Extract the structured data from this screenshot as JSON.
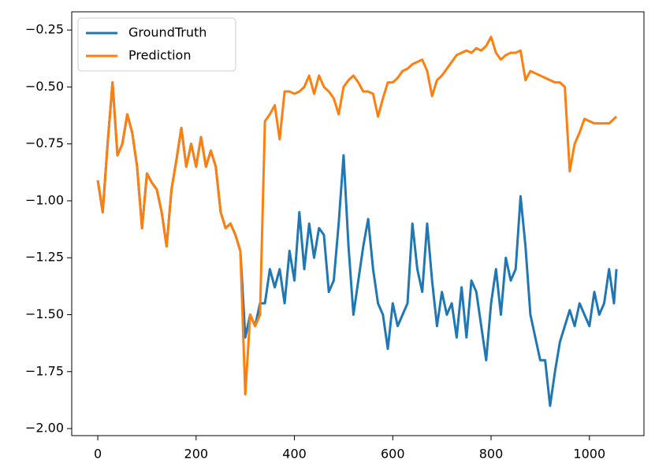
{
  "chart_data": {
    "type": "line",
    "x": [
      0,
      10,
      20,
      30,
      40,
      50,
      60,
      70,
      80,
      90,
      100,
      110,
      120,
      130,
      140,
      150,
      160,
      170,
      180,
      190,
      200,
      210,
      220,
      230,
      240,
      250,
      260,
      270,
      280,
      290,
      300,
      310,
      320,
      330,
      340,
      350,
      360,
      370,
      380,
      390,
      400,
      410,
      420,
      430,
      440,
      450,
      460,
      470,
      480,
      490,
      500,
      510,
      520,
      530,
      540,
      550,
      560,
      570,
      580,
      590,
      600,
      610,
      620,
      630,
      640,
      650,
      660,
      670,
      680,
      690,
      700,
      710,
      720,
      730,
      740,
      750,
      760,
      770,
      780,
      790,
      800,
      810,
      820,
      830,
      840,
      850,
      860,
      870,
      880,
      890,
      900,
      910,
      920,
      930,
      940,
      950,
      960,
      970,
      980,
      990,
      1000,
      1010,
      1020,
      1030,
      1040,
      1050,
      1055
    ],
    "series": [
      {
        "name": "GroundTruth",
        "color": "#1f77b4",
        "values": [
          -0.91,
          -1.05,
          -0.75,
          -0.48,
          -0.8,
          -0.75,
          -0.62,
          -0.7,
          -0.85,
          -1.12,
          -0.88,
          -0.92,
          -0.95,
          -1.05,
          -1.2,
          -0.95,
          -0.82,
          -0.68,
          -0.85,
          -0.75,
          -0.85,
          -0.72,
          -0.85,
          -0.78,
          -0.85,
          -1.05,
          -1.12,
          -1.1,
          -1.15,
          -1.22,
          -1.6,
          -1.5,
          -1.55,
          -1.45,
          -1.45,
          -1.3,
          -1.38,
          -1.3,
          -1.45,
          -1.22,
          -1.35,
          -1.05,
          -1.3,
          -1.1,
          -1.25,
          -1.12,
          -1.15,
          -1.4,
          -1.35,
          -1.1,
          -0.8,
          -1.2,
          -1.5,
          -1.35,
          -1.2,
          -1.08,
          -1.3,
          -1.45,
          -1.5,
          -1.65,
          -1.45,
          -1.55,
          -1.5,
          -1.45,
          -1.1,
          -1.3,
          -1.4,
          -1.1,
          -1.35,
          -1.55,
          -1.4,
          -1.5,
          -1.45,
          -1.6,
          -1.38,
          -1.6,
          -1.35,
          -1.4,
          -1.55,
          -1.7,
          -1.45,
          -1.3,
          -1.5,
          -1.25,
          -1.35,
          -1.3,
          -0.98,
          -1.2,
          -1.5,
          -1.6,
          -1.7,
          -1.7,
          -1.9,
          -1.75,
          -1.62,
          -1.55,
          -1.48,
          -1.55,
          -1.45,
          -1.5,
          -1.55,
          -1.4,
          -1.5,
          -1.45,
          -1.3,
          -1.45,
          -1.3
        ]
      },
      {
        "name": "Prediction",
        "color": "#ff7f0e",
        "values": [
          -0.91,
          -1.05,
          -0.75,
          -0.48,
          -0.8,
          -0.75,
          -0.62,
          -0.7,
          -0.85,
          -1.12,
          -0.88,
          -0.92,
          -0.95,
          -1.05,
          -1.2,
          -0.95,
          -0.82,
          -0.68,
          -0.85,
          -0.75,
          -0.85,
          -0.72,
          -0.85,
          -0.78,
          -0.85,
          -1.05,
          -1.12,
          -1.1,
          -1.15,
          -1.22,
          -1.85,
          -1.5,
          -1.55,
          -1.5,
          -0.65,
          -0.62,
          -0.58,
          -0.73,
          -0.52,
          -0.52,
          -0.53,
          -0.52,
          -0.5,
          -0.45,
          -0.53,
          -0.45,
          -0.5,
          -0.52,
          -0.55,
          -0.62,
          -0.5,
          -0.47,
          -0.45,
          -0.48,
          -0.52,
          -0.52,
          -0.53,
          -0.63,
          -0.55,
          -0.48,
          -0.48,
          -0.46,
          -0.43,
          -0.42,
          -0.4,
          -0.39,
          -0.38,
          -0.43,
          -0.54,
          -0.47,
          -0.45,
          -0.42,
          -0.39,
          -0.36,
          -0.35,
          -0.34,
          -0.35,
          -0.33,
          -0.34,
          -0.32,
          -0.28,
          -0.35,
          -0.38,
          -0.36,
          -0.35,
          -0.35,
          -0.34,
          -0.47,
          -0.43,
          -0.44,
          -0.45,
          -0.46,
          -0.47,
          -0.48,
          -0.48,
          -0.5,
          -0.87,
          -0.75,
          -0.7,
          -0.64,
          -0.65,
          -0.66,
          -0.66,
          -0.66,
          -0.66,
          -0.64,
          -0.63
        ]
      }
    ],
    "xlim": [
      -53,
      1111
    ],
    "xticks": [
      0,
      200,
      400,
      600,
      800,
      1000
    ],
    "ylim": [
      -2.031,
      -0.17
    ],
    "yticks": [
      {
        "value": -2.0,
        "label": "−2.00"
      },
      {
        "value": -1.75,
        "label": "−1.75"
      },
      {
        "value": -1.5,
        "label": "−1.50"
      },
      {
        "value": -1.25,
        "label": "−1.25"
      },
      {
        "value": -1.0,
        "label": "−1.00"
      },
      {
        "value": -0.75,
        "label": "−0.75"
      },
      {
        "value": -0.5,
        "label": "−0.50"
      },
      {
        "value": -0.25,
        "label": "−0.25"
      }
    ],
    "legend": "upper left"
  }
}
